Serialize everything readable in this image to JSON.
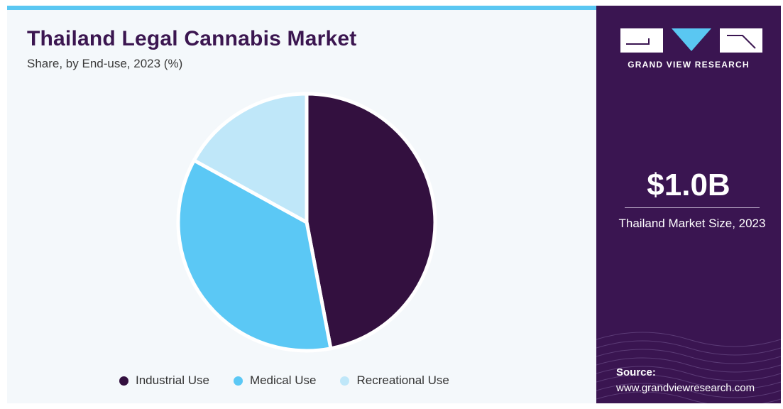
{
  "chart_data": {
    "type": "pie",
    "title": "Thailand Legal Cannabis Market",
    "subtitle": "Share, by End-use, 2023 (%)",
    "categories": [
      "Industrial Use",
      "Medical Use",
      "Recreational Use"
    ],
    "values": [
      47,
      36,
      17
    ],
    "colors": [
      "#33103f",
      "#5bc8f5",
      "#bfe7f9"
    ],
    "legend": "bottom"
  },
  "sidebar": {
    "brand": "GRAND VIEW RESEARCH",
    "kpi_value": "$1.0B",
    "kpi_label": "Thailand Market Size, 2023",
    "source_label": "Source:",
    "source_url": "www.grandviewresearch.com",
    "background_color": "#3a1551"
  },
  "accent_color": "#5ac7f2"
}
